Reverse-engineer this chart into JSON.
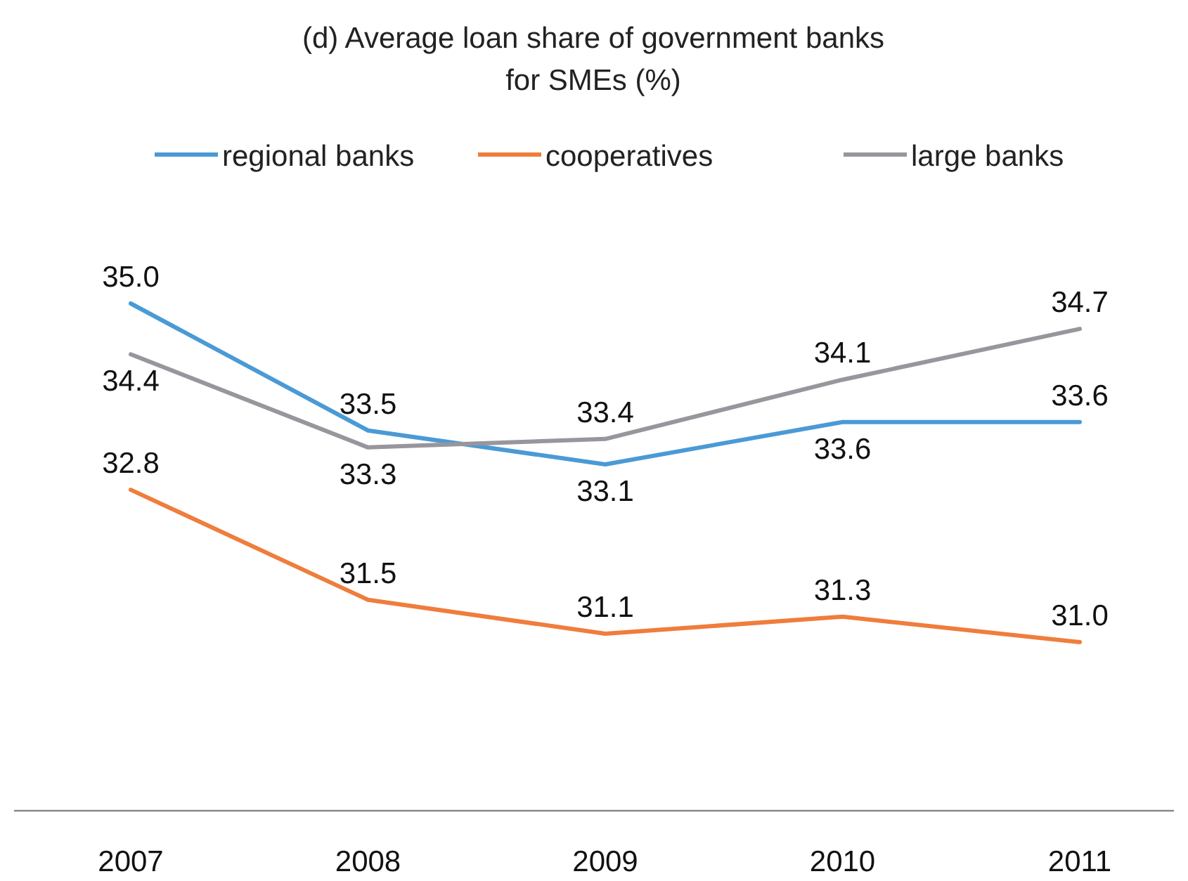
{
  "chart_data": {
    "type": "line",
    "title": "(d) Average loan share of government banks\nfor SMEs (%)",
    "categories": [
      "2007",
      "2008",
      "2009",
      "2010",
      "2011"
    ],
    "tick_labels": "x",
    "legend": "top",
    "marker": "none",
    "series": [
      {
        "name": "regional banks",
        "color": "#4a9ad6",
        "values": [
          35.0,
          33.5,
          33.1,
          33.6,
          33.6
        ],
        "value_labels": [
          "35.0",
          "33.5",
          "33.1",
          "33.6",
          "33.6"
        ]
      },
      {
        "name": "cooperatives",
        "color": "#ef7d3c",
        "values": [
          32.8,
          31.5,
          31.1,
          31.3,
          31.0
        ],
        "value_labels": [
          "32.8",
          "31.5",
          "31.1",
          "31.3",
          "31.0"
        ]
      },
      {
        "name": "large banks",
        "color": "#98969d",
        "values": [
          34.4,
          33.3,
          33.4,
          34.1,
          34.7
        ],
        "value_labels": [
          "34.4",
          "33.3",
          "33.4",
          "34.1",
          "34.7"
        ]
      }
    ]
  }
}
